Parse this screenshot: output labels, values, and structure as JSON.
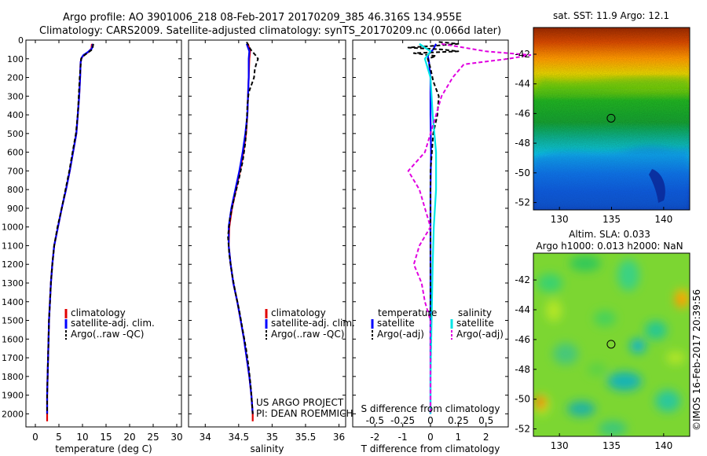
{
  "header": {
    "line1": "Argo profile: AO 3901006_218 08-Feb-2017 20170209_385 46.316S 134.955E",
    "line2": "Climatology: CARS2009. Satellite-adjusted climatology: synTS_20170209.nc (0.066d later)"
  },
  "colors": {
    "climatology": "#e00000",
    "satellite": "#0000ff",
    "argo": "#000000",
    "satellite_s": "#00e5e5",
    "argo_s": "#e000e0"
  },
  "depth_ticks": [
    "0",
    "100",
    "200",
    "300",
    "400",
    "500",
    "600",
    "700",
    "800",
    "900",
    "1000",
    "1100",
    "1200",
    "1300",
    "1400",
    "1500",
    "1600",
    "1700",
    "1800",
    "1900",
    "2000"
  ],
  "chart_data": [
    {
      "type": "line",
      "xlabel": "temperature (deg C)",
      "xlim": [
        -2,
        31
      ],
      "ylim": [
        0,
        2070
      ],
      "xticks": [
        0,
        5,
        10,
        15,
        20,
        25,
        30
      ],
      "legend": {
        "placement": "center-left",
        "entries": [
          "climatology",
          "satellite-adj. clim.",
          "Argo(..raw -QC)"
        ]
      },
      "series": [
        {
          "name": "climatology",
          "color_key": "climatology",
          "dash": false,
          "points": [
            [
              12.0,
              20
            ],
            [
              11.9,
              45
            ],
            [
              11.2,
              65
            ],
            [
              10.3,
              80
            ],
            [
              9.8,
              95
            ],
            [
              9.6,
              120
            ],
            [
              9.5,
              200
            ],
            [
              9.3,
              300
            ],
            [
              9.0,
              400
            ],
            [
              8.7,
              500
            ],
            [
              8.0,
              600
            ],
            [
              7.3,
              700
            ],
            [
              6.5,
              800
            ],
            [
              5.6,
              900
            ],
            [
              4.8,
              1000
            ],
            [
              4.0,
              1100
            ],
            [
              3.6,
              1200
            ],
            [
              3.3,
              1300
            ],
            [
              3.1,
              1400
            ],
            [
              2.9,
              1500
            ],
            [
              2.8,
              1600
            ],
            [
              2.7,
              1700
            ],
            [
              2.6,
              1800
            ],
            [
              2.5,
              1900
            ],
            [
              2.5,
              2000
            ],
            [
              2.5,
              2040
            ]
          ]
        },
        {
          "name": "satellite-adj. clim.",
          "color_key": "satellite",
          "dash": false,
          "points": [
            [
              12.2,
              20
            ],
            [
              12.0,
              45
            ],
            [
              11.1,
              65
            ],
            [
              10.2,
              80
            ],
            [
              9.8,
              95
            ],
            [
              9.6,
              120
            ],
            [
              9.5,
              200
            ],
            [
              9.3,
              300
            ],
            [
              9.0,
              400
            ],
            [
              8.7,
              500
            ],
            [
              8.0,
              600
            ],
            [
              7.3,
              700
            ],
            [
              6.5,
              800
            ],
            [
              5.6,
              900
            ],
            [
              4.8,
              1000
            ],
            [
              4.0,
              1100
            ],
            [
              3.6,
              1200
            ],
            [
              3.3,
              1300
            ],
            [
              3.1,
              1400
            ],
            [
              2.9,
              1500
            ],
            [
              2.8,
              1600
            ],
            [
              2.7,
              1700
            ],
            [
              2.6,
              1800
            ],
            [
              2.5,
              1900
            ],
            [
              2.5,
              2000
            ]
          ]
        },
        {
          "name": "Argo(..raw -QC)",
          "color_key": "argo",
          "dash": true,
          "points": [
            [
              12.3,
              20
            ],
            [
              12.1,
              50
            ],
            [
              11.0,
              70
            ],
            [
              10.2,
              85
            ],
            [
              9.7,
              100
            ],
            [
              9.6,
              140
            ],
            [
              9.4,
              200
            ],
            [
              9.2,
              300
            ],
            [
              9.0,
              400
            ],
            [
              8.6,
              500
            ],
            [
              7.9,
              600
            ],
            [
              7.2,
              700
            ],
            [
              6.4,
              800
            ],
            [
              5.6,
              900
            ],
            [
              4.7,
              1000
            ],
            [
              4.0,
              1100
            ],
            [
              3.6,
              1200
            ],
            [
              3.3,
              1300
            ],
            [
              3.1,
              1400
            ],
            [
              2.9,
              1500
            ],
            [
              2.8,
              1600
            ],
            [
              2.7,
              1700
            ],
            [
              2.6,
              1800
            ],
            [
              2.5,
              1900
            ],
            [
              2.5,
              2000
            ]
          ]
        }
      ]
    },
    {
      "type": "line",
      "xlabel": "salinity",
      "xlim": [
        33.75,
        36.1
      ],
      "ylim": [
        0,
        2070
      ],
      "xticks": [
        34,
        34.5,
        35,
        35.5,
        36
      ],
      "legend": {
        "placement": "center-right",
        "entries": [
          "climatology",
          "satellite-adj. clim.",
          "Argo(..raw -QC)"
        ]
      },
      "annotation": {
        "line1": "US ARGO PROJECT",
        "line2": "PI: DEAN ROEMMICH"
      },
      "series": [
        {
          "name": "climatology",
          "color_key": "climatology",
          "dash": false,
          "points": [
            [
              34.64,
              20
            ],
            [
              34.67,
              60
            ],
            [
              34.66,
              100
            ],
            [
              34.65,
              200
            ],
            [
              34.64,
              300
            ],
            [
              34.63,
              400
            ],
            [
              34.61,
              500
            ],
            [
              34.57,
              600
            ],
            [
              34.52,
              700
            ],
            [
              34.46,
              800
            ],
            [
              34.4,
              900
            ],
            [
              34.36,
              1000
            ],
            [
              34.35,
              1100
            ],
            [
              34.38,
              1200
            ],
            [
              34.42,
              1300
            ],
            [
              34.48,
              1400
            ],
            [
              34.53,
              1500
            ],
            [
              34.58,
              1600
            ],
            [
              34.62,
              1700
            ],
            [
              34.66,
              1800
            ],
            [
              34.69,
              1900
            ],
            [
              34.71,
              2000
            ],
            [
              34.71,
              2040
            ]
          ]
        },
        {
          "name": "satellite-adj. clim.",
          "color_key": "satellite",
          "dash": false,
          "points": [
            [
              34.62,
              20
            ],
            [
              34.66,
              60
            ],
            [
              34.65,
              100
            ],
            [
              34.65,
              200
            ],
            [
              34.64,
              300
            ],
            [
              34.63,
              400
            ],
            [
              34.6,
              500
            ],
            [
              34.56,
              600
            ],
            [
              34.51,
              700
            ],
            [
              34.45,
              800
            ],
            [
              34.39,
              900
            ],
            [
              34.35,
              1000
            ],
            [
              34.35,
              1100
            ],
            [
              34.38,
              1200
            ],
            [
              34.42,
              1300
            ],
            [
              34.48,
              1400
            ],
            [
              34.53,
              1500
            ],
            [
              34.58,
              1600
            ],
            [
              34.62,
              1700
            ],
            [
              34.66,
              1800
            ],
            [
              34.69,
              1900
            ],
            [
              34.71,
              2000
            ]
          ]
        },
        {
          "name": "Argo(..raw -QC)",
          "color_key": "argo",
          "dash": true,
          "points": [
            [
              34.62,
              10
            ],
            [
              34.67,
              45
            ],
            [
              34.7,
              60
            ],
            [
              34.75,
              80
            ],
            [
              34.79,
              100
            ],
            [
              34.76,
              130
            ],
            [
              34.74,
              160
            ],
            [
              34.73,
              200
            ],
            [
              34.7,
              230
            ],
            [
              34.65,
              280
            ],
            [
              34.63,
              350
            ],
            [
              34.62,
              450
            ],
            [
              34.6,
              550
            ],
            [
              34.56,
              650
            ],
            [
              34.5,
              750
            ],
            [
              34.43,
              850
            ],
            [
              34.37,
              950
            ],
            [
              34.34,
              1050
            ],
            [
              34.36,
              1150
            ],
            [
              34.4,
              1250
            ],
            [
              34.45,
              1350
            ],
            [
              34.51,
              1450
            ],
            [
              34.56,
              1550
            ],
            [
              34.61,
              1650
            ],
            [
              34.65,
              1750
            ],
            [
              34.68,
              1850
            ],
            [
              34.7,
              1950
            ],
            [
              34.71,
              2000
            ]
          ]
        }
      ]
    },
    {
      "type": "line",
      "xlabel": "T difference from climatology",
      "xlabel_top": "S difference from climatology",
      "xlim": [
        -2.8,
        2.8
      ],
      "ylim": [
        0,
        2070
      ],
      "xticks": [
        -2,
        -1,
        0,
        1,
        2
      ],
      "xticks_top": [
        "-0.5",
        "-0.25",
        "0",
        "0.25",
        "0.5"
      ],
      "legend": {
        "placement": "center",
        "temp_header": "temperature",
        "sal_header": "salinity",
        "temp_entries": [
          "satellite",
          "Argo(-adj)"
        ],
        "sal_entries": [
          "satellite",
          "Argo(-adj)"
        ]
      },
      "series": [
        {
          "name": "satellite",
          "color_key": "satellite",
          "dash": false,
          "points": [
            [
              0.2,
              20
            ],
            [
              0.1,
              50
            ],
            [
              -0.1,
              80
            ],
            [
              -0.05,
              120
            ],
            [
              0.0,
              200
            ],
            [
              0.0,
              400
            ],
            [
              0.02,
              600
            ],
            [
              0.0,
              800
            ],
            [
              0.0,
              1000
            ],
            [
              0.0,
              1200
            ],
            [
              0.0,
              1500
            ],
            [
              0.0,
              1800
            ],
            [
              0.0,
              2000
            ]
          ]
        },
        {
          "name": "Argo(-adj)",
          "color_key": "argo",
          "dash": true,
          "points": [
            [
              0.3,
              10
            ],
            [
              1.0,
              20
            ],
            [
              0.2,
              30
            ],
            [
              -0.8,
              40
            ],
            [
              0.4,
              50
            ],
            [
              1.0,
              60
            ],
            [
              -0.6,
              70
            ],
            [
              0.2,
              85
            ],
            [
              -0.1,
              100
            ],
            [
              0.0,
              150
            ],
            [
              0.1,
              220
            ],
            [
              0.3,
              300
            ],
            [
              0.25,
              400
            ],
            [
              0.1,
              500
            ],
            [
              0.05,
              600
            ],
            [
              0.0,
              700
            ],
            [
              0.0,
              800
            ],
            [
              0.0,
              900
            ],
            [
              0.0,
              1000
            ],
            [
              0.0,
              1100
            ],
            [
              0.0,
              1200
            ],
            [
              0.0,
              1400
            ],
            [
              0.0,
              1600
            ],
            [
              0.0,
              1800
            ],
            [
              0.0,
              2000
            ]
          ]
        },
        {
          "name": "salinity satellite",
          "color_key": "satellite_s",
          "dash": false,
          "points": [
            [
              -0.1,
              20
            ],
            [
              0.0,
              60
            ],
            [
              -0.05,
              100
            ],
            [
              0.0,
              200
            ],
            [
              0.02,
              400
            ],
            [
              0.05,
              600
            ],
            [
              0.05,
              800
            ],
            [
              0.03,
              1000
            ],
            [
              0.02,
              1200
            ],
            [
              0.01,
              1500
            ],
            [
              0.0,
              1800
            ],
            [
              0.0,
              2000
            ]
          ]
        },
        {
          "name": "salinity Argo(-adj)",
          "color_key": "argo_s",
          "dash": true,
          "points": [
            [
              0.1,
              20
            ],
            [
              0.3,
              40
            ],
            [
              0.5,
              60
            ],
            [
              0.9,
              80
            ],
            [
              0.7,
              100
            ],
            [
              0.3,
              130
            ],
            [
              0.2,
              200
            ],
            [
              0.1,
              300
            ],
            [
              0.05,
              400
            ],
            [
              0.0,
              500
            ],
            [
              -0.05,
              600
            ],
            [
              -0.2,
              700
            ],
            [
              -0.1,
              800
            ],
            [
              -0.05,
              900
            ],
            [
              0.0,
              1000
            ],
            [
              -0.1,
              1100
            ],
            [
              -0.15,
              1200
            ],
            [
              -0.08,
              1300
            ],
            [
              -0.05,
              1400
            ],
            [
              0.0,
              1500
            ],
            [
              0.0,
              1700
            ],
            [
              0.0,
              2000
            ]
          ]
        }
      ]
    },
    {
      "type": "heatmap",
      "title": "sat. SST: 11.9 Argo: 12.1",
      "xlim": [
        127.5,
        142.5
      ],
      "ylim": [
        -52.5,
        -40.2
      ],
      "xticks": [
        "130",
        "135",
        "140"
      ],
      "yticks": [
        "-42",
        "-44",
        "-46",
        "-48",
        "-50",
        "-52"
      ],
      "marker": {
        "lon": 134.955,
        "lat": -46.316
      }
    },
    {
      "type": "heatmap",
      "title_line1": "Altim. SLA: 0.033",
      "title_line2": "Argo h1000: 0.013 h2000: NaN",
      "xlim": [
        127.5,
        142.5
      ],
      "ylim": [
        -52.5,
        -40.2
      ],
      "xticks": [
        "130",
        "135",
        "140"
      ],
      "yticks": [
        "-42",
        "-44",
        "-46",
        "-48",
        "-50",
        "-52"
      ],
      "marker": {
        "lon": 134.955,
        "lat": -46.316
      }
    }
  ],
  "credit": "©IMOS 16-Feb-2017 20:39:56"
}
